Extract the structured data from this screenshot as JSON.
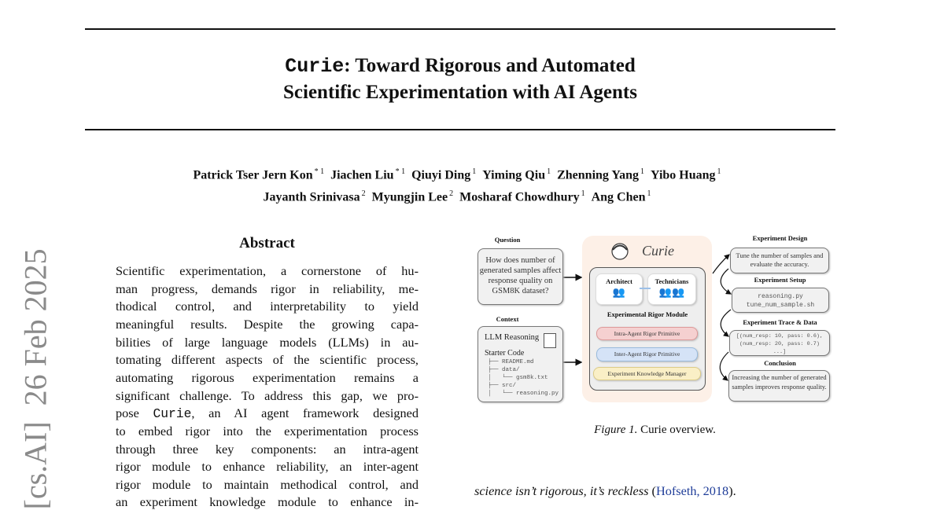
{
  "paper": {
    "title_mono": "Curie",
    "title_rest_line1": ": Toward Rigorous and Automated",
    "title_line2": "Scientific Experimentation with AI Agents",
    "authors_line1": [
      {
        "name": "Patrick Tser Jern Kon",
        "aff": "* 1"
      },
      {
        "name": "Jiachen Liu",
        "aff": "* 1"
      },
      {
        "name": "Qiuyi Ding",
        "aff": "1"
      },
      {
        "name": "Yiming Qiu",
        "aff": "1"
      },
      {
        "name": "Zhenning Yang",
        "aff": "1"
      },
      {
        "name": "Yibo Huang",
        "aff": "1"
      }
    ],
    "authors_line2": [
      {
        "name": "Jayanth Srinivasa",
        "aff": "2"
      },
      {
        "name": "Myungjin Lee",
        "aff": "2"
      },
      {
        "name": "Mosharaf Chowdhury",
        "aff": "1"
      },
      {
        "name": "Ang Chen",
        "aff": "1"
      }
    ],
    "arxiv_stamp": "[cs.AI]  26 Feb 2025",
    "abstract_heading": "Abstract",
    "abstract_lines": [
      "Scientific experimentation, a cornerstone of hu-",
      "man progress, demands rigor in reliability, me-",
      "thodical control, and interpretability to yield",
      "meaningful results. Despite the growing capa-",
      "bilities of large language models (LLMs) in au-",
      "tomating different aspects of the scientific process,",
      "automating rigorous experimentation remains a",
      "significant challenge. To address this gap, we pro-"
    ],
    "abstract_line9_pre": "pose ",
    "abstract_line9_mono": "Curie",
    "abstract_line9_post": ", an AI agent framework designed",
    "abstract_lines_rest": [
      "to embed rigor into the experimentation process",
      "through three key components: an intra-agent",
      "rigor module to enhance reliability, an inter-agent",
      "rigor module to maintain methodical control, and",
      "an experiment knowledge module to enhance in-"
    ],
    "figure": {
      "question_label": "Question",
      "question_text": "How does number of generated samples affect response quality on GSM8K dataset?",
      "context_label": "Context",
      "context_title": "LLM Reasoning",
      "starter_code_label": "Starter Code",
      "tree": [
        "├── README.md",
        "├── data/",
        "│   └── gsm8k.txt",
        "├── src/",
        "│   └── reasoning.py"
      ],
      "curie_name": "Curie",
      "architect_label": "Architect",
      "technicians_label": "Technicians",
      "module_label": "Experimental Rigor Module",
      "intra_label": "Intra-Agent Rigor Primitive",
      "inter_label": "Inter-Agent Rigor Primitive",
      "knowledge_label": "Experiment Knowledge Manager",
      "design_label": "Experiment Design",
      "design_text": "Tune the number of samples and evaluate the accuracy.",
      "setup_label": "Experiment Setup",
      "setup_lines": [
        "reasoning.py",
        "tune_num_sample.sh"
      ],
      "trace_label": "Experiment Trace & Data",
      "trace_lines": [
        "[(num_resp: 10, pass: 0.6),",
        "(num_resp: 20, pass: 0.7)",
        "...]"
      ],
      "conclusion_label": "Conclusion",
      "conclusion_text": "Increasing the number of generated samples improves response quality.",
      "colors": {
        "curie_bg": "#fdf0e7",
        "intra": "#f5d0d0",
        "inter": "#d5e3f7",
        "knowledge": "#faefc6"
      }
    },
    "caption_prefix": "Figure 1.",
    "caption_text": " Curie overview.",
    "body_italic": "science isn’t rigorous, it’s reckless",
    "body_cite_open": " (",
    "body_cite": "Hofseth, 2018",
    "body_cite_close": ")."
  }
}
